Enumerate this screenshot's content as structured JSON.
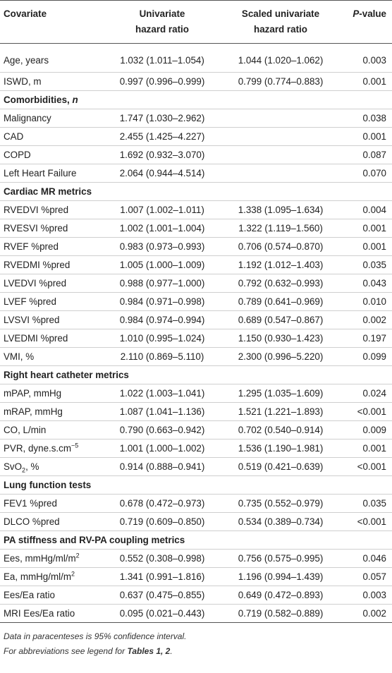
{
  "header": {
    "covariate": "Covariate",
    "univariate_line1": "Univariate",
    "univariate_line2": "hazard ratio",
    "scaled_line1": "Scaled univariate",
    "scaled_line2": "hazard ratio",
    "pvalue_italic": "P",
    "pvalue_rest": "-value"
  },
  "rows": [
    {
      "kind": "data",
      "covariate": "Age, years",
      "univariate": "1.032 (1.011–1.054)",
      "scaled": "1.044 (1.020–1.062)",
      "p": "0.003"
    },
    {
      "kind": "data",
      "covariate": "ISWD, m",
      "univariate": "0.997 (0.996–0.999)",
      "scaled": "0.799 (0.774–0.883)",
      "p": "0.001"
    },
    {
      "kind": "section",
      "title": "Comorbidities, ",
      "title_italic": "n"
    },
    {
      "kind": "data",
      "covariate": "Malignancy",
      "univariate": "1.747 (1.030–2.962)",
      "scaled": "",
      "p": "0.038"
    },
    {
      "kind": "data",
      "covariate": "CAD",
      "univariate": "2.455 (1.425–4.227)",
      "scaled": "",
      "p": "0.001"
    },
    {
      "kind": "data",
      "covariate": "COPD",
      "univariate": "1.692 (0.932–3.070)",
      "scaled": "",
      "p": "0.087"
    },
    {
      "kind": "data",
      "covariate": "Left Heart Failure",
      "univariate": "2.064 (0.944–4.514)",
      "scaled": "",
      "p": "0.070"
    },
    {
      "kind": "section",
      "title": "Cardiac MR metrics"
    },
    {
      "kind": "data",
      "covariate": "RVEDVI %pred",
      "univariate": "1.007 (1.002–1.011)",
      "scaled": "1.338 (1.095–1.634)",
      "p": "0.004"
    },
    {
      "kind": "data",
      "covariate": "RVESVI %pred",
      "univariate": "1.002 (1.001–1.004)",
      "scaled": "1.322 (1.119–1.560)",
      "p": "0.001"
    },
    {
      "kind": "data",
      "covariate": "RVEF %pred",
      "univariate": "0.983 (0.973–0.993)",
      "scaled": "0.706 (0.574–0.870)",
      "p": "0.001"
    },
    {
      "kind": "data",
      "covariate": "RVEDMI %pred",
      "univariate": "1.005 (1.000–1.009)",
      "scaled": "1.192 (1.012–1.403)",
      "p": "0.035"
    },
    {
      "kind": "data",
      "covariate": "LVEDVI %pred",
      "univariate": "0.988 (0.977–1.000)",
      "scaled": "0.792 (0.632–0.993)",
      "p": "0.043"
    },
    {
      "kind": "data",
      "covariate": "LVEF %pred",
      "univariate": "0.984 (0.971–0.998)",
      "scaled": "0.789 (0.641–0.969)",
      "p": "0.010"
    },
    {
      "kind": "data",
      "covariate": "LVSVI %pred",
      "univariate": "0.984 (0.974–0.994)",
      "scaled": "0.689 (0.547–0.867)",
      "p": "0.002"
    },
    {
      "kind": "data",
      "covariate": "LVEDMI %pred",
      "univariate": "1.010 (0.995–1.024)",
      "scaled": "1.150 (0.930–1.423)",
      "p": "0.197"
    },
    {
      "kind": "data",
      "covariate": "VMI, %",
      "univariate": "2.110 (0.869–5.110)",
      "scaled": "2.300 (0.996–5.220)",
      "p": "0.099"
    },
    {
      "kind": "section",
      "title": "Right heart catheter metrics"
    },
    {
      "kind": "data",
      "covariate": "mPAP, mmHg",
      "univariate": "1.022 (1.003–1.041)",
      "scaled": "1.295 (1.035–1.609)",
      "p": "0.024"
    },
    {
      "kind": "data",
      "covariate": "mRAP, mmHg",
      "univariate": "1.087 (1.041–1.136)",
      "scaled": "1.521 (1.221–1.893)",
      "p": "<0.001"
    },
    {
      "kind": "data",
      "covariate": "CO, L/min",
      "univariate": "0.790 (0.663–0.942)",
      "scaled": "0.702 (0.540–0.914)",
      "p": "0.009"
    },
    {
      "kind": "data",
      "covariate": "PVR, dyne.s.cm",
      "covariate_sup": "−5",
      "univariate": "1.001 (1.000–1.002)",
      "scaled": "1.536 (1.190–1.981)",
      "p": "0.001"
    },
    {
      "kind": "data",
      "covariate": "SvO",
      "covariate_sub": "2",
      "covariate_tail": ", %",
      "univariate": "0.914 (0.888–0.941)",
      "scaled": "0.519 (0.421–0.639)",
      "p": "<0.001"
    },
    {
      "kind": "section",
      "title": "Lung function tests"
    },
    {
      "kind": "data",
      "covariate": "FEV1 %pred",
      "univariate": "0.678 (0.472–0.973)",
      "scaled": "0.735 (0.552–0.979)",
      "p": "0.035"
    },
    {
      "kind": "data",
      "covariate": "DLCO %pred",
      "univariate": "0.719 (0.609–0.850)",
      "scaled": "0.534 (0.389–0.734)",
      "p": "<0.001"
    },
    {
      "kind": "section",
      "title": "PA stiffness and RV-PA coupling metrics"
    },
    {
      "kind": "data",
      "covariate": "Ees, mmHg/ml/m",
      "covariate_sup": "2",
      "univariate": "0.552 (0.308–0.998)",
      "scaled": "0.756 (0.575–0.995)",
      "p": "0.046"
    },
    {
      "kind": "data",
      "covariate": "Ea, mmHg/ml/m",
      "covariate_sup": "2",
      "univariate": "1.341 (0.991–1.816)",
      "scaled": "1.196 (0.994–1.439)",
      "p": "0.057"
    },
    {
      "kind": "data",
      "covariate": "Ees/Ea ratio",
      "univariate": "0.637 (0.475–0.855)",
      "scaled": "0.649 (0.472–0.893)",
      "p": "0.003"
    },
    {
      "kind": "data",
      "covariate": "MRI Ees/Ea ratio",
      "univariate": "0.095 (0.021–0.443)",
      "scaled": "0.719 (0.582–0.889)",
      "p": "0.002"
    }
  ],
  "footnotes": {
    "line1": "Data in paracenteses is 95% confidence interval.",
    "line2_prefix": "For abbreviations see legend for ",
    "line2_bold": "Tables 1, 2",
    "line2_suffix": "."
  }
}
